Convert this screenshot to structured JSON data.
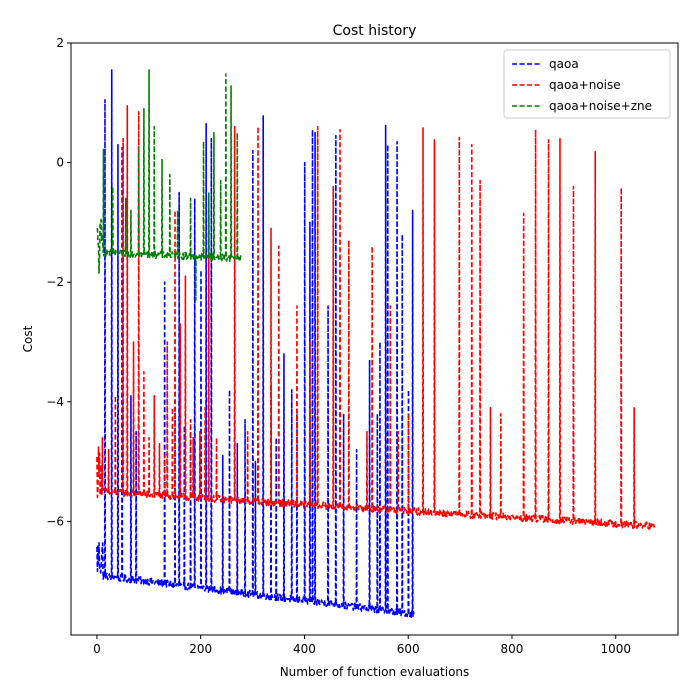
{
  "chart_data": {
    "type": "line",
    "title": "Cost history",
    "xlabel": "Number of function evaluations",
    "ylabel": "Cost",
    "xlim": [
      -50,
      1120
    ],
    "ylim": [
      -7.9,
      2.0
    ],
    "x_ticks": [
      0,
      200,
      400,
      600,
      800,
      1000
    ],
    "y_ticks": [
      2,
      0,
      -2,
      -4,
      -6
    ],
    "grid": false,
    "legend_position": "top-right",
    "line_style": "dashed",
    "series": [
      {
        "name": "qaoa",
        "color": "#0000ff",
        "x_range": [
          0,
          612
        ],
        "baseline_start": -6.9,
        "baseline_end": -7.55,
        "noise_start": [
          -6.2,
          -7.0
        ],
        "spikes": [
          [
            15,
            1.05
          ],
          [
            28,
            1.55
          ],
          [
            40,
            0.3
          ],
          [
            48,
            0.25
          ],
          [
            65,
            -3.9
          ],
          [
            75,
            -4.5
          ],
          [
            130,
            -2.0
          ],
          [
            150,
            -4.1
          ],
          [
            158,
            -0.5
          ],
          [
            168,
            -4.4
          ],
          [
            180,
            -4.5
          ],
          [
            188,
            -0.6
          ],
          [
            200,
            -1.8
          ],
          [
            210,
            0.65
          ],
          [
            220,
            0.4
          ],
          [
            242,
            -4.9
          ],
          [
            255,
            -3.8
          ],
          [
            270,
            -4.7
          ],
          [
            285,
            -4.3
          ],
          [
            300,
            0.2
          ],
          [
            305,
            -5.0
          ],
          [
            320,
            0.78
          ],
          [
            335,
            -3.7
          ],
          [
            345,
            -4.6
          ],
          [
            360,
            -3.2
          ],
          [
            375,
            -3.8
          ],
          [
            385,
            -4.2
          ],
          [
            400,
            0.0
          ],
          [
            410,
            -1.0
          ],
          [
            415,
            0.55
          ],
          [
            420,
            0.5
          ],
          [
            445,
            -2.4
          ],
          [
            460,
            0.45
          ],
          [
            475,
            -4.2
          ],
          [
            500,
            -4.8
          ],
          [
            525,
            -3.3
          ],
          [
            540,
            -4.2
          ],
          [
            545,
            -3.0
          ],
          [
            556,
            0.62
          ],
          [
            560,
            0.3
          ],
          [
            578,
            0.35
          ],
          [
            588,
            -1.2
          ],
          [
            600,
            -3.8
          ],
          [
            608,
            -0.8
          ]
        ]
      },
      {
        "name": "qaoa+noise",
        "color": "#ff0000",
        "x_range": [
          0,
          1075
        ],
        "baseline_start": -5.5,
        "baseline_end": -6.08,
        "noise_start": [
          -4.7,
          -5.6
        ],
        "spikes": [
          [
            10,
            -4.6
          ],
          [
            22,
            -4.8
          ],
          [
            35,
            -3.9
          ],
          [
            50,
            0.4
          ],
          [
            58,
            0.95
          ],
          [
            70,
            -3.0
          ],
          [
            80,
            0.85
          ],
          [
            90,
            -3.5
          ],
          [
            100,
            -4.6
          ],
          [
            110,
            -3.9
          ],
          [
            120,
            -4.7
          ],
          [
            130,
            -4.9
          ],
          [
            135,
            -3.0
          ],
          [
            145,
            -4.1
          ],
          [
            150,
            -0.8
          ],
          [
            160,
            -2.7
          ],
          [
            170,
            -1.9
          ],
          [
            180,
            -4.3
          ],
          [
            185,
            -4.6
          ],
          [
            198,
            -4.5
          ],
          [
            208,
            -4.1
          ],
          [
            215,
            -0.8
          ],
          [
            230,
            -4.6
          ],
          [
            265,
            0.6
          ],
          [
            290,
            -4.5
          ],
          [
            310,
            0.6
          ],
          [
            335,
            -1.1
          ],
          [
            350,
            -1.4
          ],
          [
            385,
            -2.4
          ],
          [
            410,
            -3.0
          ],
          [
            425,
            0.6
          ],
          [
            455,
            -0.4
          ],
          [
            468,
            0.55
          ],
          [
            485,
            -1.3
          ],
          [
            520,
            -4.5
          ],
          [
            530,
            -1.4
          ],
          [
            565,
            -2.4
          ],
          [
            580,
            -4.5
          ],
          [
            600,
            -4.2
          ],
          [
            628,
            0.58
          ],
          [
            650,
            0.38
          ],
          [
            698,
            0.42
          ],
          [
            722,
            0.3
          ],
          [
            738,
            -0.3
          ],
          [
            758,
            -4.1
          ],
          [
            778,
            -4.2
          ],
          [
            822,
            -0.85
          ],
          [
            845,
            0.55
          ],
          [
            870,
            0.38
          ],
          [
            892,
            0.4
          ],
          [
            918,
            -0.4
          ],
          [
            960,
            0.18
          ],
          [
            1010,
            -0.42
          ],
          [
            1035,
            -4.1
          ]
        ]
      },
      {
        "name": "qaoa+noise+zne",
        "color": "#008000",
        "x_range": [
          0,
          280
        ],
        "baseline_start": -1.5,
        "baseline_end": -1.6,
        "noise_start": [
          -0.9,
          -1.95
        ],
        "spikes": [
          [
            12,
            0.22
          ],
          [
            30,
            -0.4
          ],
          [
            55,
            -0.6
          ],
          [
            65,
            -0.8
          ],
          [
            80,
            0.25
          ],
          [
            90,
            0.9
          ],
          [
            100,
            1.55
          ],
          [
            110,
            0.6
          ],
          [
            125,
            0.05
          ],
          [
            140,
            -0.2
          ],
          [
            155,
            -0.8
          ],
          [
            180,
            -0.6
          ],
          [
            190,
            -2.3
          ],
          [
            205,
            0.35
          ],
          [
            215,
            -0.5
          ],
          [
            225,
            0.5
          ],
          [
            238,
            -0.3
          ],
          [
            248,
            1.48
          ],
          [
            258,
            1.28
          ],
          [
            270,
            0.5
          ]
        ]
      }
    ]
  }
}
